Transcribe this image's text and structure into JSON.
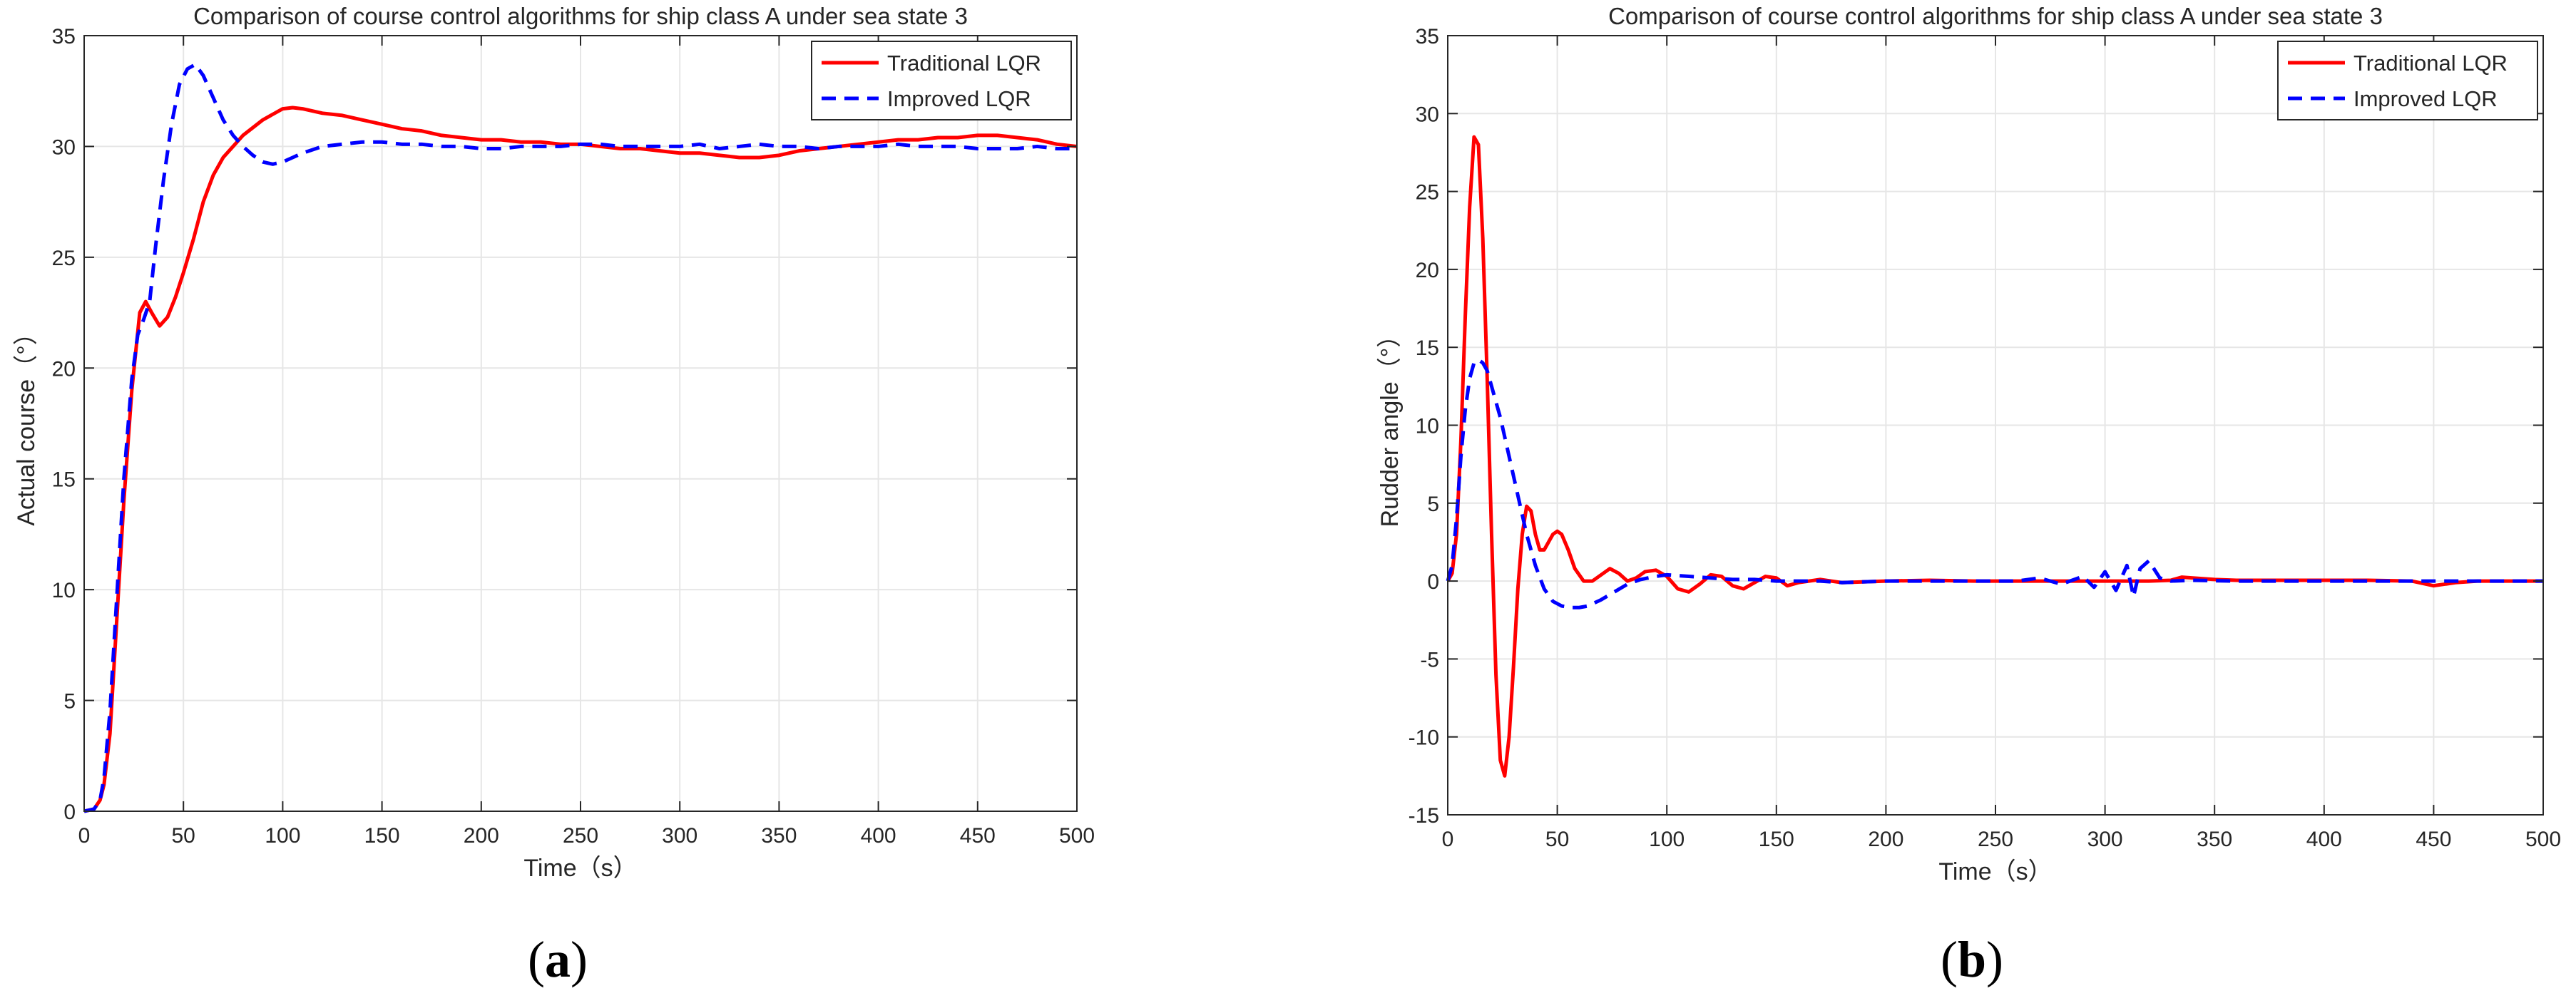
{
  "chart_data": [
    {
      "type": "line",
      "panel_label": "(a)",
      "title": "Comparison of course control algorithms for ship class A under sea state 3",
      "xlabel": "Time（s）",
      "ylabel": "Actual course（°）",
      "xlim": [
        0,
        500
      ],
      "ylim": [
        0,
        35
      ],
      "xticks": [
        0,
        50,
        100,
        150,
        200,
        250,
        300,
        350,
        400,
        450,
        500
      ],
      "yticks": [
        0,
        5,
        10,
        15,
        20,
        25,
        30,
        35
      ],
      "grid": true,
      "legend": "top-right",
      "series": [
        {
          "name": "Traditional LQR",
          "color": "#ff0000",
          "style": "solid",
          "x": [
            0,
            5,
            8,
            10,
            13,
            16,
            20,
            24,
            28,
            31,
            34,
            38,
            42,
            46,
            50,
            55,
            60,
            65,
            70,
            75,
            80,
            90,
            100,
            105,
            110,
            120,
            130,
            140,
            150,
            160,
            170,
            180,
            190,
            200,
            210,
            220,
            230,
            240,
            250,
            260,
            270,
            280,
            290,
            300,
            310,
            320,
            330,
            340,
            350,
            360,
            370,
            380,
            390,
            400,
            410,
            420,
            430,
            440,
            450,
            460,
            470,
            480,
            490,
            500
          ],
          "values": [
            0,
            0.1,
            0.5,
            1.2,
            3.5,
            8,
            14,
            19,
            22.5,
            23,
            22.5,
            21.9,
            22.3,
            23.2,
            24.3,
            25.8,
            27.5,
            28.7,
            29.5,
            30,
            30.5,
            31.2,
            31.7,
            31.75,
            31.7,
            31.5,
            31.4,
            31.2,
            31,
            30.8,
            30.7,
            30.5,
            30.4,
            30.3,
            30.3,
            30.2,
            30.2,
            30.1,
            30.1,
            30,
            29.9,
            29.9,
            29.8,
            29.7,
            29.7,
            29.6,
            29.5,
            29.5,
            29.6,
            29.8,
            29.9,
            30,
            30.1,
            30.2,
            30.3,
            30.3,
            30.4,
            30.4,
            30.5,
            30.5,
            30.4,
            30.3,
            30.1,
            30
          ]
        },
        {
          "name": "Improved LQR",
          "color": "#0000ff",
          "style": "dashed",
          "x": [
            0,
            5,
            8,
            10,
            13,
            16,
            20,
            24,
            27,
            30,
            33,
            36,
            40,
            44,
            48,
            52,
            56,
            60,
            65,
            70,
            75,
            80,
            85,
            90,
            95,
            100,
            105,
            110,
            120,
            130,
            140,
            150,
            160,
            170,
            180,
            190,
            200,
            210,
            220,
            230,
            240,
            250,
            260,
            270,
            280,
            290,
            300,
            310,
            320,
            330,
            340,
            350,
            360,
            370,
            380,
            390,
            400,
            410,
            420,
            430,
            440,
            450,
            460,
            470,
            480,
            490,
            500
          ],
          "values": [
            0,
            0.1,
            0.5,
            1.5,
            4.5,
            9,
            15,
            19.5,
            21.5,
            22.2,
            23,
            25.5,
            28.5,
            31,
            32.8,
            33.5,
            33.7,
            33.2,
            32.2,
            31.2,
            30.5,
            30,
            29.6,
            29.3,
            29.2,
            29.3,
            29.5,
            29.7,
            30,
            30.1,
            30.2,
            30.2,
            30.1,
            30.1,
            30,
            30,
            29.9,
            29.9,
            30,
            30,
            30,
            30.1,
            30.1,
            30,
            30,
            30,
            30,
            30.1,
            29.9,
            30,
            30.1,
            30,
            30,
            29.9,
            30,
            30,
            30,
            30.1,
            30,
            30,
            30,
            29.9,
            29.9,
            29.9,
            30,
            29.9,
            29.9
          ]
        }
      ]
    },
    {
      "type": "line",
      "panel_label": "(b)",
      "title": "Comparison of course control algorithms for ship class A under sea state 3",
      "xlabel": "Time（s）",
      "ylabel": "Rudder angle（°）",
      "xlim": [
        0,
        500
      ],
      "ylim": [
        -15,
        35
      ],
      "xticks": [
        0,
        50,
        100,
        150,
        200,
        250,
        300,
        350,
        400,
        450,
        500
      ],
      "yticks": [
        -15,
        -10,
        -5,
        0,
        5,
        10,
        15,
        20,
        25,
        30,
        35
      ],
      "grid": true,
      "legend": "top-right",
      "series": [
        {
          "name": "Traditional LQR",
          "color": "#ff0000",
          "style": "solid",
          "x": [
            0,
            2,
            4,
            6,
            8,
            10,
            12,
            14,
            16,
            18,
            20,
            22,
            24,
            26,
            28,
            30,
            32,
            34,
            36,
            38,
            40,
            42,
            44,
            46,
            48,
            50,
            52,
            55,
            58,
            62,
            66,
            70,
            74,
            78,
            82,
            86,
            90,
            95,
            100,
            105,
            110,
            115,
            120,
            125,
            130,
            135,
            140,
            145,
            150,
            155,
            160,
            170,
            180,
            200,
            220,
            240,
            260,
            280,
            300,
            320,
            330,
            335,
            340,
            350,
            360,
            380,
            400,
            420,
            440,
            450,
            460,
            470,
            480,
            500
          ],
          "values": [
            0,
            0.5,
            3,
            9,
            17,
            24,
            28.5,
            28,
            22,
            13,
            3,
            -6,
            -11.5,
            -12.5,
            -10,
            -5.5,
            -0.5,
            3,
            4.8,
            4.5,
            3,
            2,
            2,
            2.5,
            3,
            3.2,
            3,
            2,
            0.8,
            0,
            0,
            0.4,
            0.8,
            0.5,
            0,
            0.2,
            0.6,
            0.7,
            0.3,
            -0.5,
            -0.7,
            -0.2,
            0.4,
            0.3,
            -0.3,
            -0.5,
            -0.1,
            0.3,
            0.2,
            -0.3,
            -0.1,
            0.1,
            -0.1,
            0,
            0.05,
            0,
            0,
            0,
            0,
            0,
            0.05,
            0.25,
            0.2,
            0.1,
            0.05,
            0.05,
            0.05,
            0.05,
            0,
            -0.3,
            -0.1,
            0,
            0,
            0
          ]
        },
        {
          "name": "Improved LQR",
          "color": "#0000ff",
          "style": "dashed",
          "x": [
            0,
            2,
            4,
            6,
            8,
            10,
            12,
            14,
            16,
            18,
            20,
            24,
            28,
            32,
            36,
            40,
            44,
            48,
            52,
            56,
            60,
            64,
            70,
            76,
            82,
            88,
            95,
            100,
            110,
            120,
            130,
            140,
            150,
            160,
            170,
            180,
            200,
            220,
            240,
            260,
            270,
            280,
            290,
            295,
            300,
            305,
            310,
            313,
            316,
            320,
            325,
            330,
            340,
            360,
            380,
            400,
            420,
            440,
            460,
            480,
            500
          ],
          "values": [
            0,
            1,
            4,
            8,
            11,
            13,
            14,
            14.2,
            14,
            13.5,
            12.5,
            10.5,
            8,
            5.5,
            3,
            1,
            -0.5,
            -1.3,
            -1.6,
            -1.7,
            -1.7,
            -1.6,
            -1.2,
            -0.7,
            -0.2,
            0.1,
            0.3,
            0.4,
            0.3,
            0.2,
            0.1,
            0.1,
            0,
            0,
            0,
            -0.1,
            0,
            0,
            0,
            0,
            0.2,
            -0.2,
            0.3,
            -0.4,
            0.6,
            -0.6,
            1,
            -1,
            0.8,
            1.3,
            0.2,
            0,
            0.05,
            0,
            0,
            0,
            0,
            0,
            0,
            0,
            0
          ]
        }
      ]
    }
  ]
}
